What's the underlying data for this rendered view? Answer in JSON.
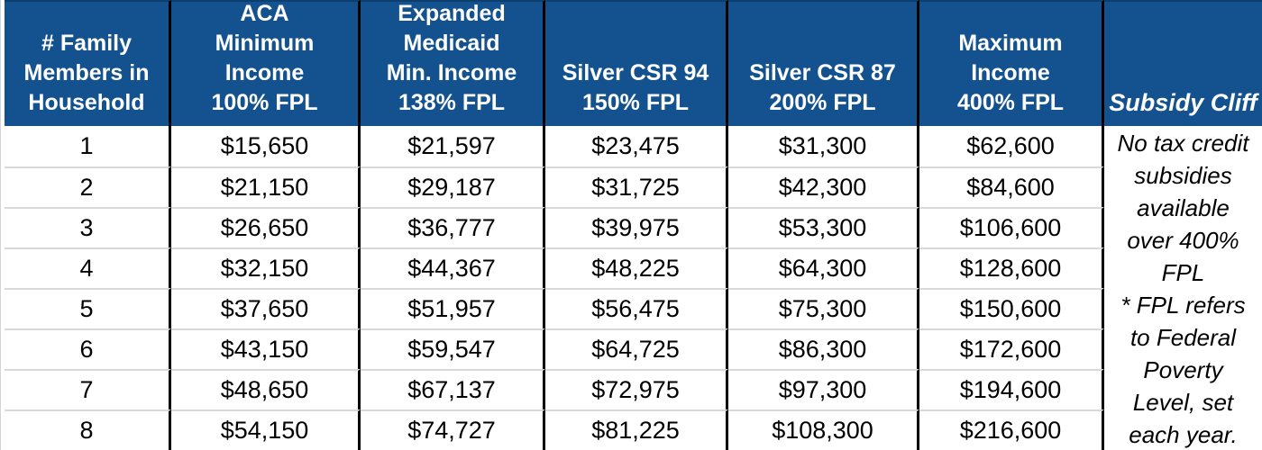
{
  "colors": {
    "header_bg": "#13528F",
    "header_text": "#FFFFFF",
    "column_divider": "#000000",
    "row_separator": "#D9D9D9",
    "body_text": "#000000"
  },
  "table": {
    "headers": [
      "# Family\nMembers in\nHousehold",
      "ACA\nMinimum\nIncome\n100% FPL",
      "Expanded\nMedicaid\nMin. Income\n138% FPL",
      "Silver CSR 94\n150% FPL",
      "Silver CSR 87\n200% FPL",
      "Maximum\nIncome\n400% FPL",
      "Subsidy Cliff"
    ],
    "rows": [
      [
        "1",
        "$15,650",
        "$21,597",
        "$23,475",
        "$31,300",
        "$62,600"
      ],
      [
        "2",
        "$21,150",
        "$29,187",
        "$31,725",
        "$42,300",
        "$84,600"
      ],
      [
        "3",
        "$26,650",
        "$36,777",
        "$39,975",
        "$53,300",
        "$106,600"
      ],
      [
        "4",
        "$32,150",
        "$44,367",
        "$48,225",
        "$64,300",
        "$128,600"
      ],
      [
        "5",
        "$37,650",
        "$51,957",
        "$56,475",
        "$75,300",
        "$150,600"
      ],
      [
        "6",
        "$43,150",
        "$59,547",
        "$64,725",
        "$86,300",
        "$172,600"
      ],
      [
        "7",
        "$48,650",
        "$67,137",
        "$72,975",
        "$97,300",
        "$194,600"
      ],
      [
        "8",
        "$54,150",
        "$74,727",
        "$81,225",
        "$108,300",
        "$216,600"
      ]
    ],
    "note_full_text": "No tax credit subsidies available over 400% FPL * FPL refers to Federal Poverty Level, set each year.",
    "note_lines": [
      "No tax credit",
      "subsidies",
      "available",
      "over 400%",
      "FPL",
      "* FPL refers",
      "to Federal",
      "Poverty",
      "Level, set",
      "each year."
    ]
  }
}
